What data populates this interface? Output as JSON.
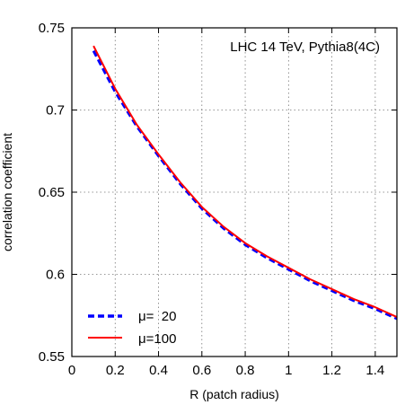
{
  "chart_data": {
    "type": "line",
    "annotation": "LHC 14 TeV, Pythia8(4C)",
    "xlabel": "R (patch radius)",
    "ylabel": "correlation coefficient",
    "xlim": [
      0,
      1.5
    ],
    "ylim": [
      0.55,
      0.75
    ],
    "xticks": [
      "0",
      "0.2",
      "0.4",
      "0.6",
      "0.8",
      "1",
      "1.2",
      "1.4"
    ],
    "yticks": [
      "0.55",
      "0.6",
      "0.65",
      "0.7",
      "0.75"
    ],
    "grid": true,
    "legend_position": "bottom-left",
    "series": [
      {
        "name": "μ=  20",
        "style": "dashed",
        "color": "#0000ff",
        "x": [
          0.1,
          0.2,
          0.3,
          0.4,
          0.5,
          0.6,
          0.7,
          0.8,
          0.9,
          1.0,
          1.1,
          1.2,
          1.3,
          1.4,
          1.5
        ],
        "y": [
          0.736,
          0.711,
          0.69,
          0.672,
          0.655,
          0.64,
          0.628,
          0.618,
          0.61,
          0.603,
          0.596,
          0.59,
          0.584,
          0.579,
          0.573
        ]
      },
      {
        "name": "μ=100",
        "style": "solid",
        "color": "#ff0000",
        "x": [
          0.1,
          0.2,
          0.3,
          0.4,
          0.5,
          0.6,
          0.7,
          0.8,
          0.9,
          1.0,
          1.1,
          1.2,
          1.3,
          1.4,
          1.5
        ],
        "y": [
          0.739,
          0.713,
          0.691,
          0.673,
          0.656,
          0.641,
          0.629,
          0.619,
          0.611,
          0.604,
          0.597,
          0.591,
          0.585,
          0.58,
          0.574
        ]
      }
    ]
  }
}
